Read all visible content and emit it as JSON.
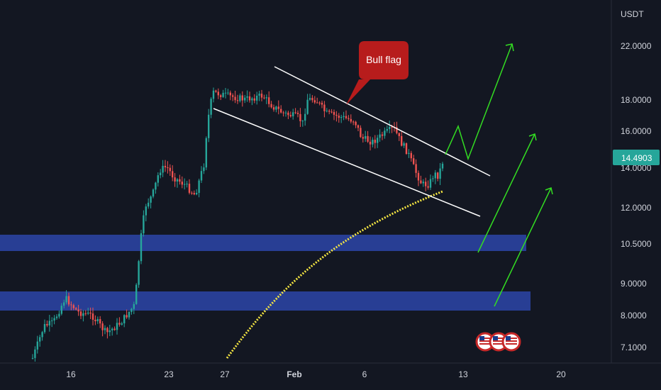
{
  "chart_data": {
    "type": "candlestick",
    "currency_label": "USDT",
    "y_ticks": [
      "22.0000",
      "18.0000",
      "16.0000",
      "14.0000",
      "12.0000",
      "10.5000",
      "9.0000",
      "8.0000",
      "7.1000"
    ],
    "x_ticks": [
      "16",
      "23",
      "27",
      "Feb",
      "6",
      "13",
      "20"
    ],
    "current_price": "14.4903",
    "annotation": "Bull flag",
    "colors": {
      "background": "#131722",
      "up": "#26a69a",
      "down": "#ef5350",
      "zone": "#283e94",
      "arrow": "#33dd22",
      "moving_average": "#f5e642",
      "flag_lines": "#ffffff",
      "callout": "#b71c1c",
      "price_badge": "#26a69a"
    },
    "icons": [
      "us-flag-icon",
      "us-flag-icon",
      "us-flag-icon"
    ]
  }
}
